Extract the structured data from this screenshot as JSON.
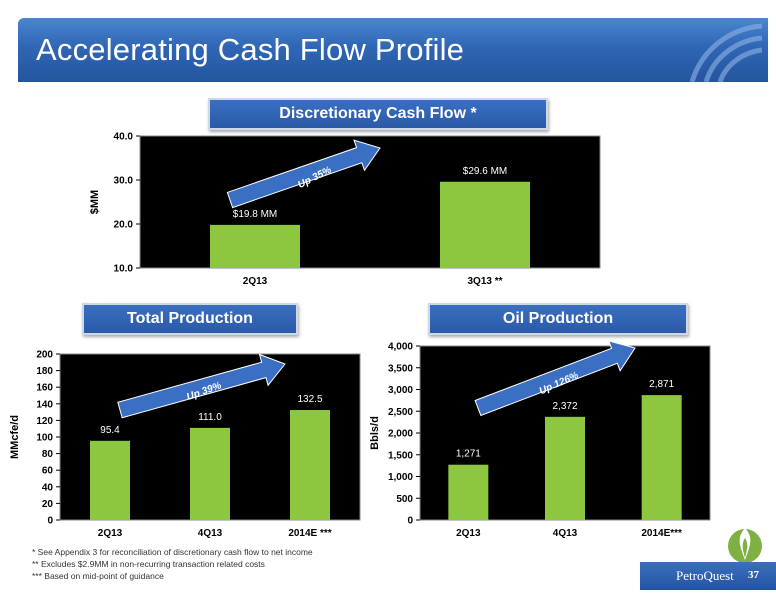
{
  "slide": {
    "title": "Accelerating Cash Flow Profile",
    "footnotes": [
      "*  See Appendix 3 for reconciliation of discretionary cash flow to net income",
      "** Excludes $2.9MM in non-recurring transaction related costs",
      "*** Based on mid-point of guidance"
    ],
    "brand": "PetroQuest",
    "page_number": "37",
    "colors": {
      "title_bar": "#2f66b5",
      "bar": "#8dc63f",
      "plot_bg": "#000000",
      "arrow": "#3b6fc4"
    }
  },
  "chart_data": [
    {
      "type": "bar",
      "title": "Discretionary Cash Flow *",
      "ylabel": "$MM",
      "categories": [
        "2Q13",
        "3Q13 **"
      ],
      "values": [
        19.8,
        29.6
      ],
      "data_labels": [
        "$19.8 MM",
        "$29.6 MM"
      ],
      "ylim": [
        10.0,
        40.0
      ],
      "yticks": [
        "10.0",
        "20.0",
        "30.0",
        "40.0"
      ],
      "annotation": "Up 35%"
    },
    {
      "type": "bar",
      "title": "Total Production",
      "ylabel": "MMcfe/d",
      "categories": [
        "2Q13",
        "4Q13",
        "2014E ***"
      ],
      "values": [
        95.4,
        111.0,
        132.5
      ],
      "data_labels": [
        "95.4",
        "111.0",
        "132.5"
      ],
      "ylim": [
        0,
        200
      ],
      "yticks": [
        "0",
        "20",
        "40",
        "60",
        "80",
        "100",
        "120",
        "140",
        "160",
        "180",
        "200"
      ],
      "annotation": "Up 39%"
    },
    {
      "type": "bar",
      "title": "Oil Production",
      "ylabel": "Bbls/d",
      "categories": [
        "2Q13",
        "4Q13",
        "2014E***"
      ],
      "values": [
        1271,
        2372,
        2871
      ],
      "data_labels": [
        "1,271",
        "2,372",
        "2,871"
      ],
      "ylim": [
        0,
        4000
      ],
      "yticks": [
        "0",
        "500",
        "1,000",
        "1,500",
        "2,000",
        "2,500",
        "3,000",
        "3,500",
        "4,000"
      ],
      "annotation": "Up 126%"
    }
  ]
}
